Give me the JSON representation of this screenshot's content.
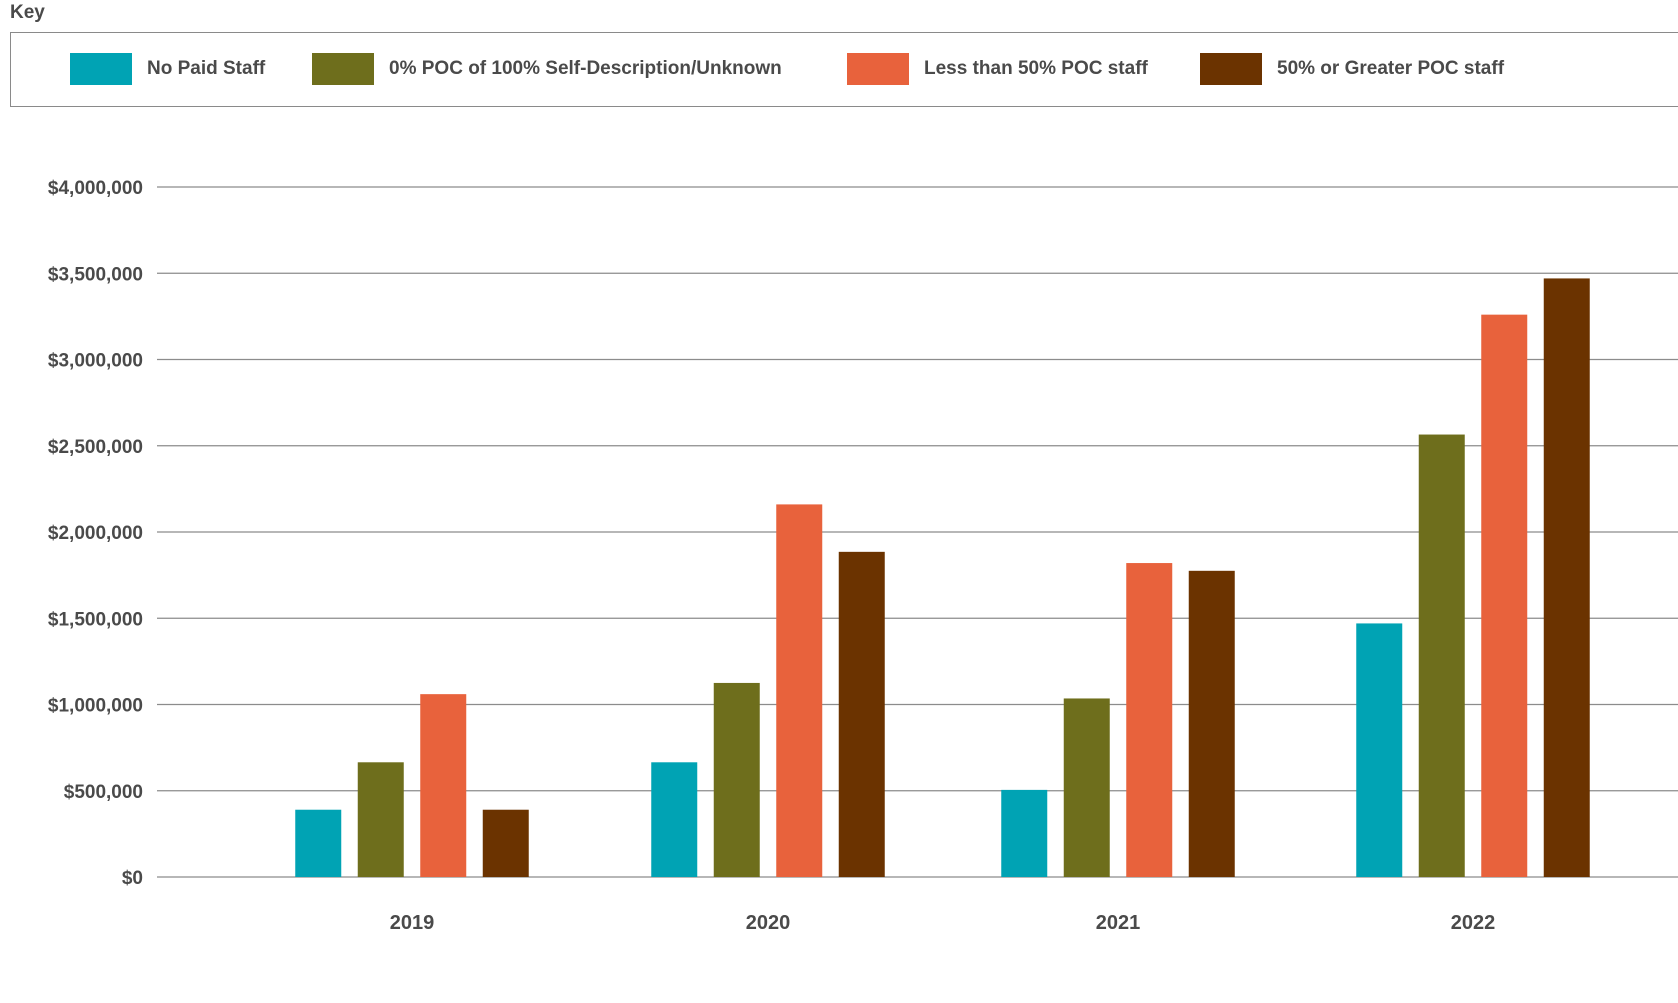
{
  "legend": {
    "title": "Key",
    "items": [
      {
        "label": "No Paid Staff",
        "color": "#00a3b4"
      },
      {
        "label": "0% POC of 100% Self-Description/Unknown",
        "color": "#6e6e1c"
      },
      {
        "label": "Less than 50% POC staff",
        "color": "#e8623c"
      },
      {
        "label": "50% or Greater POC staff",
        "color": "#6b3300"
      }
    ]
  },
  "chart_data": {
    "type": "bar",
    "categories": [
      "2019",
      "2020",
      "2021",
      "2022"
    ],
    "series": [
      {
        "name": "No Paid Staff",
        "color": "#00a3b4",
        "values": [
          390000,
          665000,
          505000,
          1470000
        ]
      },
      {
        "name": "0% POC of 100% Self-Description/Unknown",
        "color": "#6e6e1c",
        "values": [
          665000,
          1125000,
          1035000,
          2565000
        ]
      },
      {
        "name": "Less than 50% POC staff",
        "color": "#e8623c",
        "values": [
          1060000,
          2160000,
          1820000,
          3260000
        ]
      },
      {
        "name": "50% or Greater POC staff",
        "color": "#6b3300",
        "values": [
          390000,
          1885000,
          1775000,
          3470000
        ]
      }
    ],
    "ylim": [
      0,
      4000000
    ],
    "yticks": [
      0,
      500000,
      1000000,
      1500000,
      2000000,
      2500000,
      3000000,
      3500000,
      4000000
    ],
    "ytick_labels": [
      "$0",
      "$500,000",
      "$1,000,000",
      "$1,500,000",
      "$2,000,000",
      "$2,500,000",
      "$3,000,000",
      "$3,500,000",
      "$4,000,000"
    ],
    "grid": true,
    "legend_position": "top"
  }
}
